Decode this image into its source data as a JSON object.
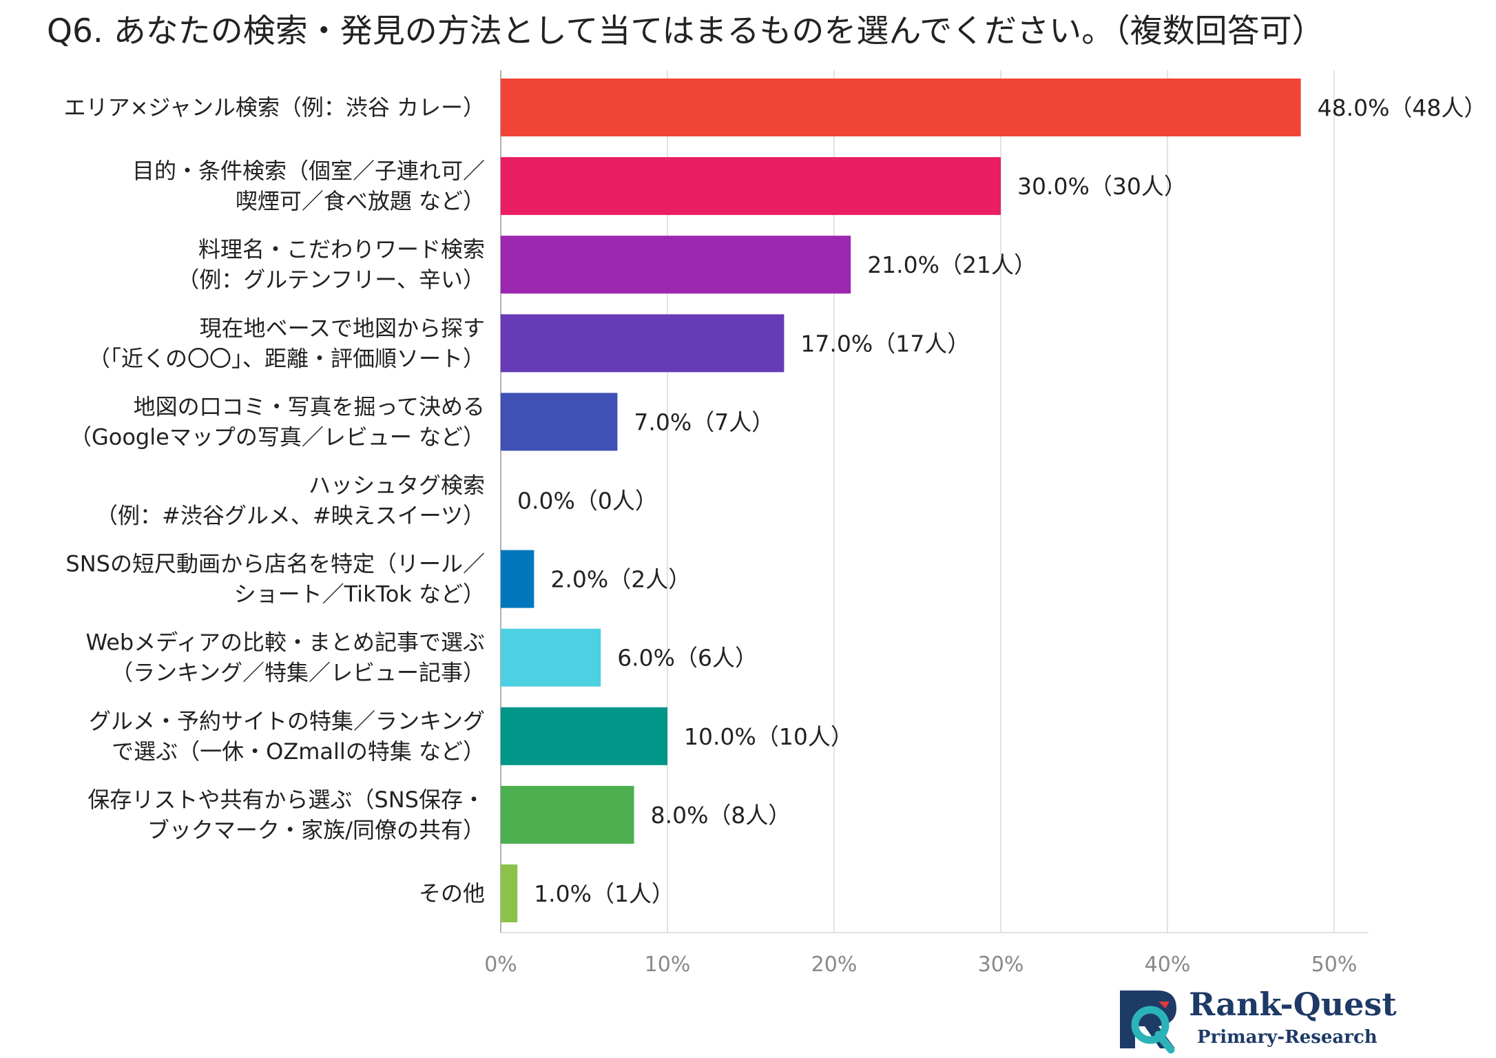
{
  "title": "Q6. あなたの検索・発見の方法として当てはまるものを選んでください。（複数回答可）",
  "chart_data": {
    "type": "bar",
    "orientation": "horizontal",
    "title": "Q6. あなたの検索・発見の方法として当てはまるものを選んでください。（複数回答可）",
    "xlim": [
      0,
      50
    ],
    "x_ticks": [
      0,
      10,
      20,
      30,
      40,
      50
    ],
    "x_tick_labels": [
      "0%",
      "10%",
      "20%",
      "30%",
      "40%",
      "50%"
    ],
    "grid": true,
    "legend": "none",
    "categories": [
      [
        "エリア×ジャンル検索（例：渋谷 カレー）"
      ],
      [
        "目的・条件検索（個室／子連れ可／",
        "喫煙可／食べ放題 など）"
      ],
      [
        "料理名・こだわりワード検索",
        "（例：グルテンフリー、辛い）"
      ],
      [
        "現在地ベースで地図から探す",
        "（「近くの〇〇」、距離・評価順ソート）"
      ],
      [
        "地図の口コミ・写真を掘って決める",
        "（Googleマップの写真／レビュー など）"
      ],
      [
        "ハッシュタグ検索",
        "（例：#渋谷グルメ、#映えスイーツ）"
      ],
      [
        "SNSの短尺動画から店名を特定（リール／",
        "ショート／TikTok など）"
      ],
      [
        "Webメディアの比較・まとめ記事で選ぶ",
        "（ランキング／特集／レビュー記事）"
      ],
      [
        "グルメ・予約サイトの特集／ランキング",
        "で選ぶ（一休・OZmallの特集 など）"
      ],
      [
        "保存リストや共有から選ぶ（SNS保存・",
        "ブックマーク・家族/同僚の共有）"
      ],
      [
        "その他"
      ]
    ],
    "values": [
      48.0,
      30.0,
      21.0,
      17.0,
      7.0,
      0.0,
      2.0,
      6.0,
      10.0,
      8.0,
      1.0
    ],
    "value_labels": [
      "48.0%（48人）",
      "30.0%（30人）",
      "21.0%（21人）",
      "17.0%（17人）",
      "7.0%（7人）",
      "0.0%（0人）",
      "2.0%（2人）",
      "6.0%（6人）",
      "10.0%（10人）",
      "8.0%（8人）",
      "1.0%（1人）"
    ],
    "colors": [
      "#f04438",
      "#e91e63",
      "#9c27b0",
      "#673ab7",
      "#3f51b5",
      "#2196f3",
      "#0277bd",
      "#4dd0e1",
      "#009688",
      "#4caf50",
      "#8bc34a"
    ]
  },
  "logo": {
    "name": "Rank-Quest",
    "subtitle": "Primary-Research",
    "mark_letter": "R",
    "colors": {
      "navy": "#1e3a66",
      "teal": "#2bb3b8",
      "red": "#e53935"
    }
  }
}
